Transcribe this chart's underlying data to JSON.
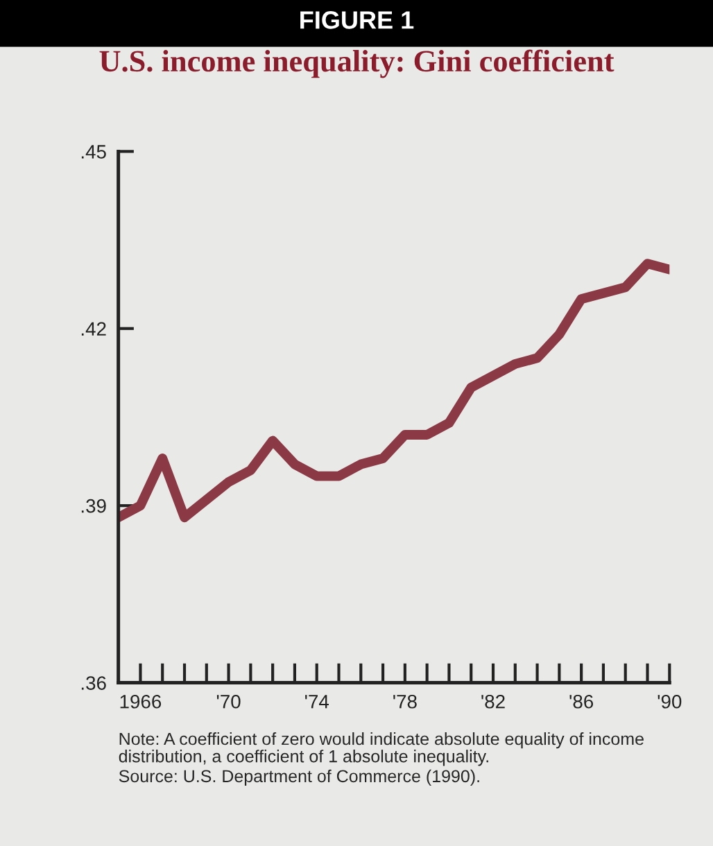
{
  "chart_data": {
    "type": "line",
    "title": "U.S. income inequality: Gini coefficient",
    "annotations": [
      "FIGURE 1",
      "Note: A coefficient of zero would indicate absolute equality of income distribution, a coefficient of 1 absolute inequality.",
      "Source: U.S. Department of Commerce (1990)."
    ],
    "x": [
      1965,
      1966,
      1967,
      1968,
      1969,
      1970,
      1971,
      1972,
      1973,
      1974,
      1975,
      1976,
      1977,
      1978,
      1979,
      1980,
      1981,
      1982,
      1983,
      1984,
      1985,
      1986,
      1987,
      1988,
      1989,
      1990
    ],
    "series": [
      {
        "color": "#8b3a45",
        "values": [
          0.388,
          0.39,
          0.398,
          0.388,
          0.391,
          0.394,
          0.396,
          0.401,
          0.397,
          0.395,
          0.395,
          0.397,
          0.398,
          0.402,
          0.402,
          0.404,
          0.41,
          0.412,
          0.414,
          0.415,
          0.419,
          0.425,
          0.426,
          0.427,
          0.431,
          0.43
        ]
      }
    ],
    "xlim": [
      1965,
      1990
    ],
    "xticks": [
      {
        "value": 1966,
        "label": "1966"
      },
      {
        "value": 1967,
        "label": null
      },
      {
        "value": 1968,
        "label": null
      },
      {
        "value": 1969,
        "label": null
      },
      {
        "value": 1970,
        "label": "'70"
      },
      {
        "value": 1971,
        "label": null
      },
      {
        "value": 1972,
        "label": null
      },
      {
        "value": 1973,
        "label": null
      },
      {
        "value": 1974,
        "label": "'74"
      },
      {
        "value": 1975,
        "label": null
      },
      {
        "value": 1976,
        "label": null
      },
      {
        "value": 1977,
        "label": null
      },
      {
        "value": 1978,
        "label": "'78"
      },
      {
        "value": 1979,
        "label": null
      },
      {
        "value": 1980,
        "label": null
      },
      {
        "value": 1981,
        "label": null
      },
      {
        "value": 1982,
        "label": "'82"
      },
      {
        "value": 1983,
        "label": null
      },
      {
        "value": 1984,
        "label": null
      },
      {
        "value": 1985,
        "label": null
      },
      {
        "value": 1986,
        "label": "'86"
      },
      {
        "value": 1987,
        "label": null
      },
      {
        "value": 1988,
        "label": null
      },
      {
        "value": 1989,
        "label": null
      },
      {
        "value": 1990,
        "label": "'90"
      }
    ],
    "ylim": [
      0.36,
      0.45
    ],
    "yticks": [
      {
        "value": 0.36,
        "label": ".36"
      },
      {
        "value": 0.39,
        "label": ".39"
      },
      {
        "value": 0.42,
        "label": ".42"
      },
      {
        "value": 0.45,
        "label": ".45"
      }
    ],
    "grid": false,
    "line_style": "solid",
    "marker": "none"
  }
}
